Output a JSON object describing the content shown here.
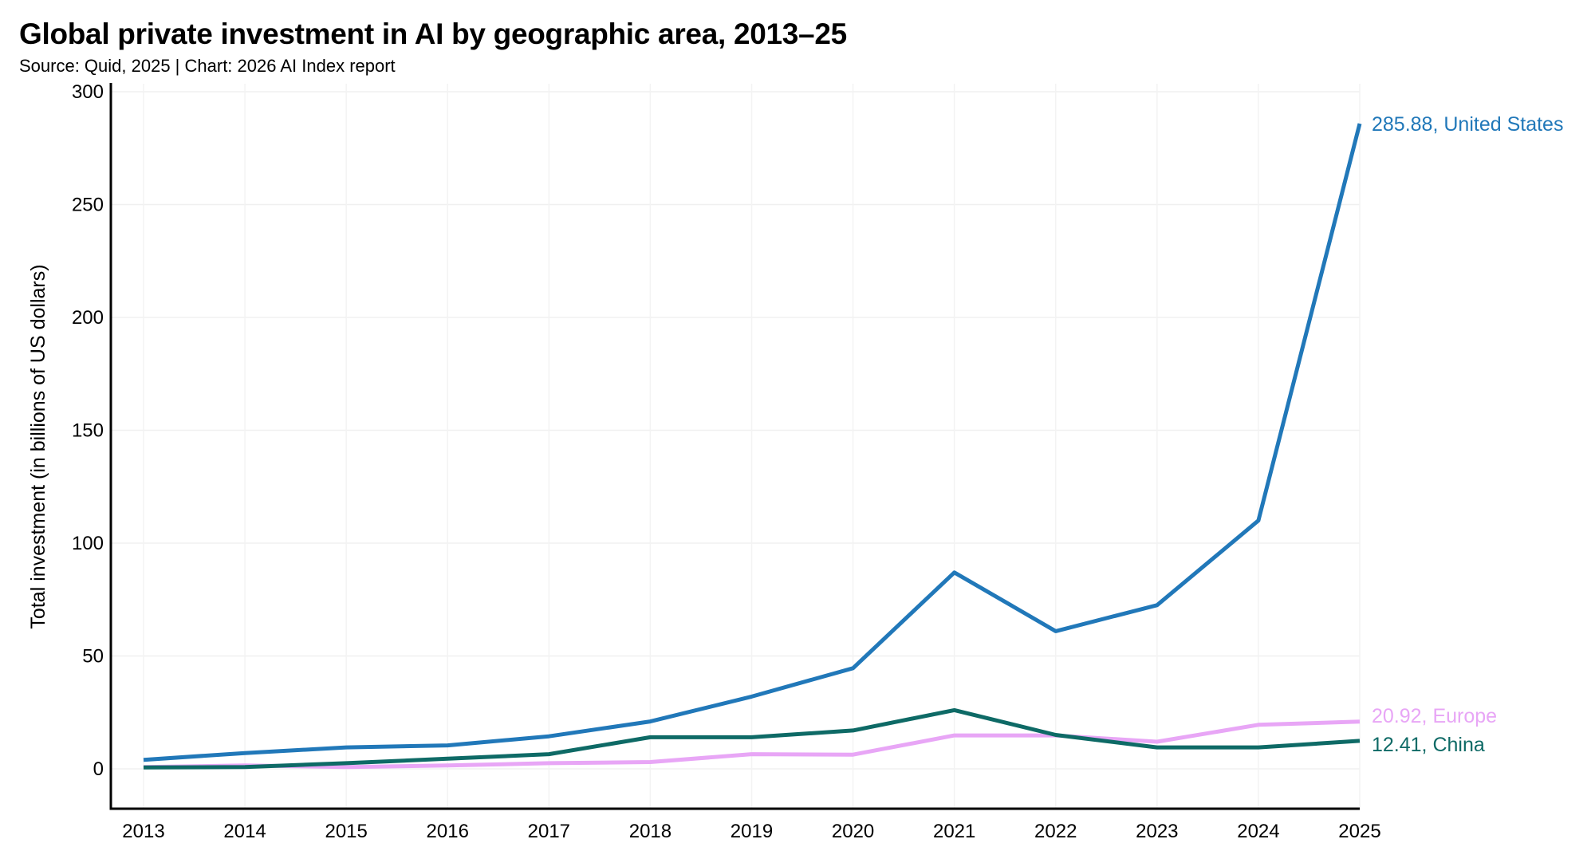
{
  "chart_data": {
    "type": "line",
    "title": "Global private investment in AI by geographic area, 2013–25",
    "subtitle": "Source: Quid, 2025 | Chart: 2026 AI Index report",
    "xlabel": "",
    "ylabel": "Total investment (in billions of US dollars)",
    "x": [
      2013,
      2014,
      2015,
      2016,
      2017,
      2018,
      2019,
      2020,
      2021,
      2022,
      2023,
      2024,
      2025
    ],
    "x_tick_labels": [
      "2013",
      "2014",
      "2015",
      "2016",
      "2017",
      "2018",
      "2019",
      "2020",
      "2021",
      "2022",
      "2023",
      "2024",
      "2025"
    ],
    "ylim": [
      -18,
      300
    ],
    "y_ticks": [
      0,
      50,
      100,
      150,
      200,
      250,
      300
    ],
    "y_tick_labels": [
      "0",
      "50",
      "100",
      "150",
      "200",
      "250",
      "300"
    ],
    "grid": true,
    "legend": "end-of-line labels",
    "series": [
      {
        "name": "United States",
        "color": "#2178b9",
        "end_label": "285.88, United States",
        "values": [
          4,
          7,
          9.5,
          10.4,
          14.4,
          21,
          32,
          44.6,
          87,
          61,
          72.5,
          110,
          285.88
        ]
      },
      {
        "name": "Europe",
        "color": "#e8a6f6",
        "end_label": "20.92, Europe",
        "values": [
          0.8,
          1.5,
          0.8,
          1.5,
          2.5,
          3,
          6.5,
          6.3,
          14.8,
          14.8,
          12,
          19.5,
          20.92
        ]
      },
      {
        "name": "China",
        "color": "#0e6a66",
        "end_label": "12.41, China",
        "values": [
          0.6,
          0.8,
          2.5,
          4.5,
          6.5,
          14,
          14,
          17,
          26,
          15,
          9.5,
          9.5,
          12.41
        ]
      }
    ]
  }
}
